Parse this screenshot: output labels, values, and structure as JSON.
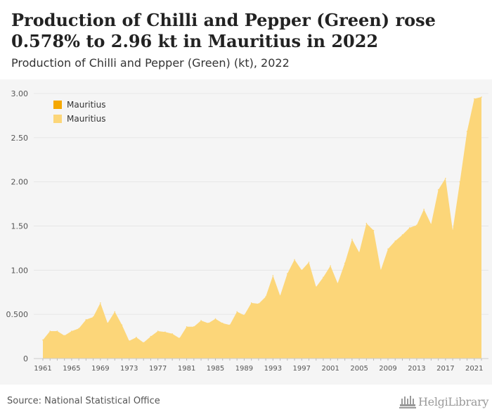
{
  "header": {
    "title": "Production of Chilli and Pepper (Green) rose 0.578% to 2.96 kt in Mauritius in 2022",
    "subtitle": "Production of Chilli and Pepper (Green) (kt), 2022"
  },
  "footer": {
    "source": "Source: National Statistical Office",
    "logo_text": "HelgiLibrary"
  },
  "colors": {
    "area_fill": "#fcd679",
    "legend_dark": "#f5a800",
    "legend_light": "#fcd679",
    "panel": "#f5f5f5",
    "grid": "#e6e6e6",
    "tick_text": "#555555"
  },
  "chart_data": {
    "type": "area",
    "title": "",
    "xlabel": "",
    "ylabel": "",
    "ylim": [
      0,
      3.0
    ],
    "yticks": [
      0,
      0.5,
      1.0,
      1.5,
      2.0,
      2.5,
      3.0
    ],
    "ytick_labels": [
      "0",
      "0.500",
      "1.00",
      "1.50",
      "2.00",
      "2.50",
      "3.00"
    ],
    "xtick_labels": [
      "1961",
      "1965",
      "1969",
      "1973",
      "1977",
      "1981",
      "1985",
      "1989",
      "1993",
      "1997",
      "2001",
      "2005",
      "2009",
      "2013",
      "2017",
      "2021"
    ],
    "grid": "horizontal",
    "legend": [
      "Mauritius",
      "Mauritius"
    ],
    "legend_placement": "top-left",
    "x": [
      1961,
      1962,
      1963,
      1964,
      1965,
      1966,
      1967,
      1968,
      1969,
      1970,
      1971,
      1972,
      1973,
      1974,
      1975,
      1976,
      1977,
      1978,
      1979,
      1980,
      1981,
      1982,
      1983,
      1984,
      1985,
      1986,
      1987,
      1988,
      1989,
      1990,
      1991,
      1992,
      1993,
      1994,
      1995,
      1996,
      1997,
      1998,
      1999,
      2000,
      2001,
      2002,
      2003,
      2004,
      2005,
      2006,
      2007,
      2008,
      2009,
      2010,
      2011,
      2012,
      2013,
      2014,
      2015,
      2016,
      2017,
      2018,
      2019,
      2020,
      2021,
      2022
    ],
    "series": [
      {
        "name": "Mauritius",
        "values": [
          0.21,
          0.31,
          0.31,
          0.26,
          0.31,
          0.34,
          0.44,
          0.47,
          0.63,
          0.4,
          0.53,
          0.38,
          0.2,
          0.24,
          0.18,
          0.25,
          0.31,
          0.3,
          0.28,
          0.23,
          0.36,
          0.36,
          0.43,
          0.4,
          0.45,
          0.4,
          0.38,
          0.53,
          0.49,
          0.63,
          0.62,
          0.7,
          0.94,
          0.71,
          0.96,
          1.12,
          1.0,
          1.09,
          0.81,
          0.92,
          1.05,
          0.85,
          1.08,
          1.35,
          1.2,
          1.53,
          1.45,
          1.0,
          1.24,
          1.33,
          1.4,
          1.48,
          1.51,
          1.69,
          1.52,
          1.91,
          2.04,
          1.45,
          2.0,
          2.57,
          2.94,
          2.96
        ]
      }
    ]
  }
}
